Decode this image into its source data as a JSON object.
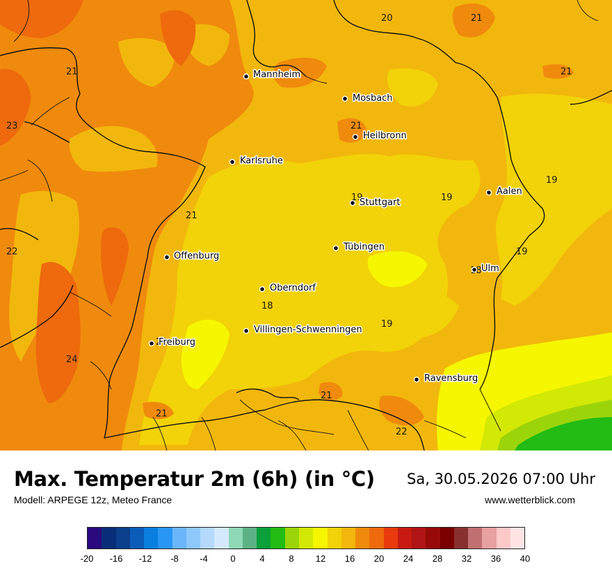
{
  "title": "Max. Temperatur 2m (6h) (in °C)",
  "model": "Modell: ARPEGE 12z, Meteo France",
  "valid_time": "Sa, 30.05.2026 07:00 Uhr",
  "website": "www.wetterblick.com",
  "cities": [
    {
      "name": "Mannheim"
    },
    {
      "name": "Mosbach"
    },
    {
      "name": "Heilbronn"
    },
    {
      "name": "Karlsruhe"
    },
    {
      "name": "Stuttgart"
    },
    {
      "name": "Aalen"
    },
    {
      "name": "Tübingen"
    },
    {
      "name": "Offenburg"
    },
    {
      "name": "Ulm"
    },
    {
      "name": "Oberndorf"
    },
    {
      "name": "Villingen-Schwenningen"
    },
    {
      "name": "Freiburg"
    },
    {
      "name": "Ravensburg"
    }
  ],
  "isotherm_labels": [
    "20",
    "21",
    "21",
    "21",
    "23",
    "21",
    "19",
    "19",
    "19",
    "21",
    "22",
    "19",
    "18",
    "18",
    "19",
    "21",
    "24",
    "21",
    "21",
    "22"
  ],
  "legend": {
    "colors": [
      "#2a0a7e",
      "#0a2d7a",
      "#0a3f8c",
      "#0a5cb8",
      "#0a7fe0",
      "#2896f5",
      "#6ab6fa",
      "#8ec8fb",
      "#b4d9fc",
      "#d4e9fd",
      "#8ed9b6",
      "#5cb285",
      "#0aa03a",
      "#22bc14",
      "#9cd40a",
      "#d2e805",
      "#f6f600",
      "#f2d208",
      "#f2b70c",
      "#f08a0c",
      "#ee6a0c",
      "#e83a0c",
      "#c81a12",
      "#b01414",
      "#980a0a",
      "#7a0000",
      "#883030",
      "#c07070",
      "#e8a0a0",
      "#fcc8c8",
      "#ffe4e4"
    ],
    "ticks": [
      "-20",
      "-16",
      "-12",
      "-8",
      "-4",
      "0",
      "4",
      "8",
      "12",
      "16",
      "20",
      "24",
      "28",
      "32",
      "36",
      "40"
    ]
  }
}
